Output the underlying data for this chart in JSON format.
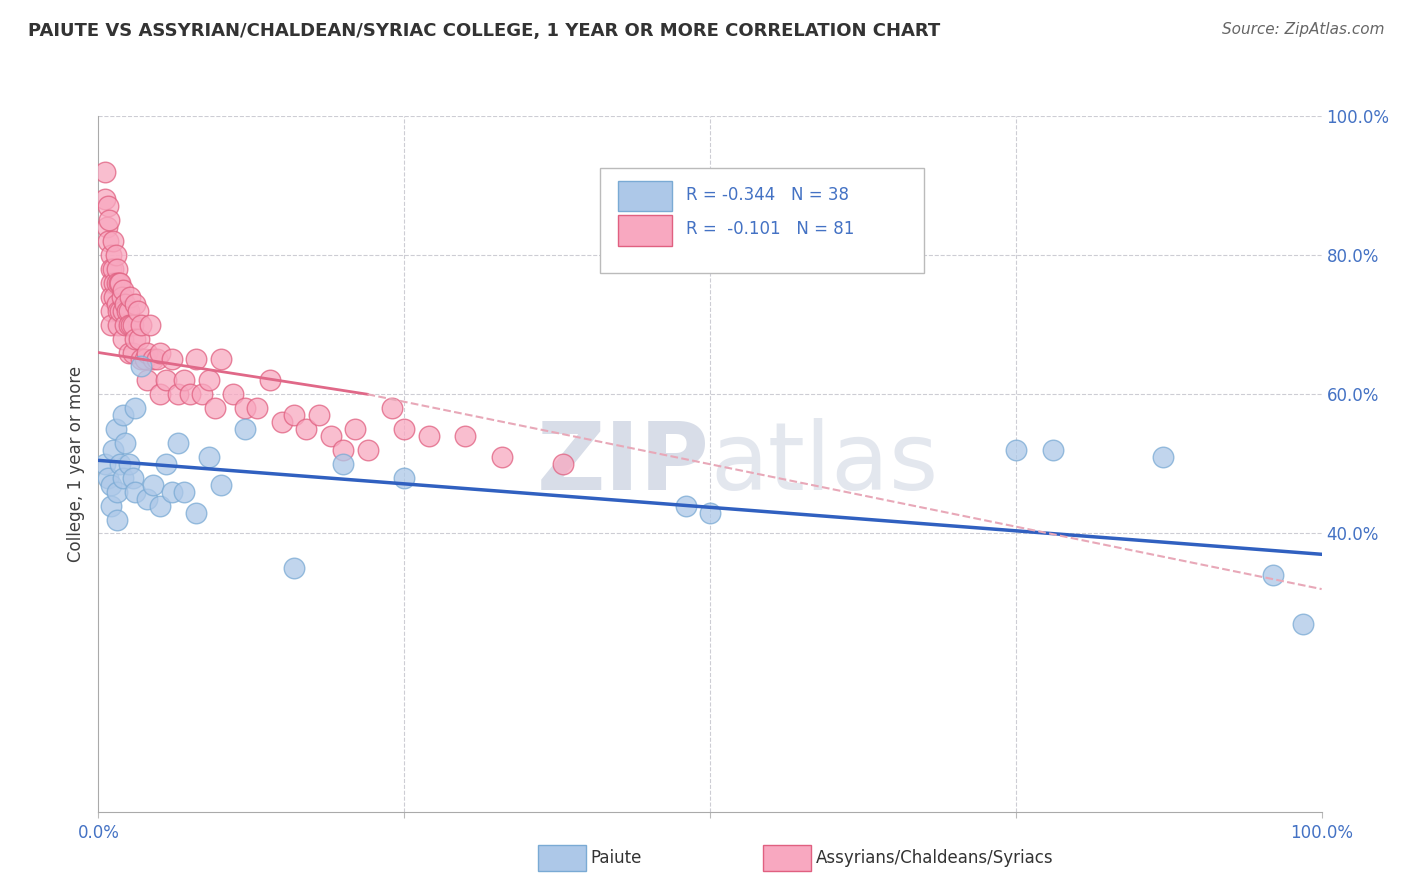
{
  "title": "PAIUTE VS ASSYRIAN/CHALDEAN/SYRIAC COLLEGE, 1 YEAR OR MORE CORRELATION CHART",
  "source": "Source: ZipAtlas.com",
  "ylabel": "College, 1 year or more",
  "xlim": [
    0.0,
    1.0
  ],
  "ylim": [
    0.0,
    1.0
  ],
  "xtick_vals": [
    0.0,
    1.0
  ],
  "xtick_labels": [
    "0.0%",
    "100.0%"
  ],
  "ytick_positions_right": [
    1.0,
    0.8,
    0.6,
    0.4
  ],
  "ytick_labels_right": [
    "100.0%",
    "80.0%",
    "60.0%",
    "40.0%"
  ],
  "legend_r1": "R = -0.344",
  "legend_n1": "N = 38",
  "legend_r2": "R =  -0.101",
  "legend_n2": "N = 81",
  "paiute_color": "#adc8e8",
  "paiute_edge_color": "#7aaad4",
  "assyrian_color": "#f8a8c0",
  "assyrian_edge_color": "#e06080",
  "trendline_paiute_color": "#3060c0",
  "trendline_assyrian_color": "#e06888",
  "trendline_dashed_color": "#e8a8b8",
  "watermark_color": "#d8dde8",
  "background_color": "#ffffff",
  "grid_color": "#c8c8d0",
  "blue_text_color": "#4472c4",
  "legend_box_paiute": "#adc8e8",
  "legend_box_assyrian": "#f8a8c0",
  "paiute_x": [
    0.005,
    0.008,
    0.01,
    0.01,
    0.012,
    0.014,
    0.015,
    0.015,
    0.018,
    0.02,
    0.02,
    0.022,
    0.025,
    0.028,
    0.03,
    0.03,
    0.035,
    0.04,
    0.045,
    0.05,
    0.055,
    0.06,
    0.065,
    0.07,
    0.08,
    0.09,
    0.1,
    0.12,
    0.16,
    0.2,
    0.25,
    0.48,
    0.5,
    0.75,
    0.78,
    0.87,
    0.96,
    0.985
  ],
  "paiute_y": [
    0.5,
    0.48,
    0.47,
    0.44,
    0.52,
    0.55,
    0.42,
    0.46,
    0.5,
    0.48,
    0.57,
    0.53,
    0.5,
    0.48,
    0.46,
    0.58,
    0.64,
    0.45,
    0.47,
    0.44,
    0.5,
    0.46,
    0.53,
    0.46,
    0.43,
    0.51,
    0.47,
    0.55,
    0.35,
    0.5,
    0.48,
    0.44,
    0.43,
    0.52,
    0.52,
    0.51,
    0.34,
    0.27
  ],
  "assyrian_x": [
    0.005,
    0.005,
    0.007,
    0.008,
    0.008,
    0.009,
    0.01,
    0.01,
    0.01,
    0.01,
    0.01,
    0.01,
    0.012,
    0.012,
    0.013,
    0.013,
    0.014,
    0.015,
    0.015,
    0.015,
    0.016,
    0.016,
    0.017,
    0.018,
    0.018,
    0.019,
    0.02,
    0.02,
    0.02,
    0.022,
    0.022,
    0.023,
    0.025,
    0.025,
    0.025,
    0.026,
    0.027,
    0.028,
    0.028,
    0.03,
    0.03,
    0.032,
    0.033,
    0.035,
    0.035,
    0.038,
    0.04,
    0.04,
    0.042,
    0.045,
    0.048,
    0.05,
    0.05,
    0.055,
    0.06,
    0.065,
    0.07,
    0.075,
    0.08,
    0.085,
    0.09,
    0.095,
    0.1,
    0.11,
    0.12,
    0.13,
    0.14,
    0.15,
    0.16,
    0.17,
    0.18,
    0.19,
    0.2,
    0.21,
    0.22,
    0.24,
    0.25,
    0.27,
    0.3,
    0.33,
    0.38
  ],
  "assyrian_y": [
    0.92,
    0.88,
    0.84,
    0.87,
    0.82,
    0.85,
    0.8,
    0.78,
    0.76,
    0.74,
    0.72,
    0.7,
    0.82,
    0.78,
    0.76,
    0.74,
    0.8,
    0.78,
    0.76,
    0.73,
    0.72,
    0.7,
    0.76,
    0.76,
    0.72,
    0.74,
    0.75,
    0.72,
    0.68,
    0.73,
    0.7,
    0.72,
    0.72,
    0.7,
    0.66,
    0.74,
    0.7,
    0.7,
    0.66,
    0.73,
    0.68,
    0.72,
    0.68,
    0.7,
    0.65,
    0.65,
    0.66,
    0.62,
    0.7,
    0.65,
    0.65,
    0.66,
    0.6,
    0.62,
    0.65,
    0.6,
    0.62,
    0.6,
    0.65,
    0.6,
    0.62,
    0.58,
    0.65,
    0.6,
    0.58,
    0.58,
    0.62,
    0.56,
    0.57,
    0.55,
    0.57,
    0.54,
    0.52,
    0.55,
    0.52,
    0.58,
    0.55,
    0.54,
    0.54,
    0.51,
    0.5
  ],
  "trendline_paiute_x0": 0.0,
  "trendline_paiute_y0": 0.505,
  "trendline_paiute_x1": 1.0,
  "trendline_paiute_y1": 0.37,
  "trendline_assyrian_x0": 0.0,
  "trendline_assyrian_y0": 0.66,
  "trendline_assyrian_solid_x1": 0.22,
  "trendline_assyrian_solid_y1": 0.6,
  "trendline_assyrian_dash_x1": 1.0,
  "trendline_assyrian_dash_y1": 0.32
}
